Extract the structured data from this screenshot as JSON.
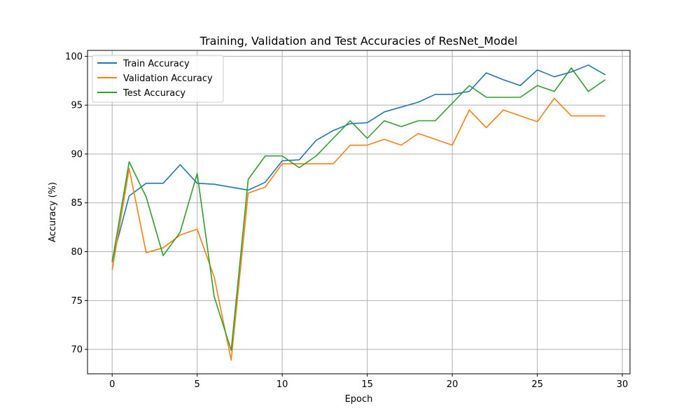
{
  "chart_data": {
    "type": "line",
    "title": "Training, Validation and Test Accuracies of ResNet_Model",
    "xlabel": "Epoch",
    "ylabel": "Accuracy (%)",
    "xlim": [
      -1.45,
      30.45
    ],
    "ylim": [
      67.5,
      100.6
    ],
    "xticks": [
      0,
      5,
      10,
      15,
      20,
      25,
      30
    ],
    "yticks": [
      70,
      75,
      80,
      85,
      90,
      95,
      100
    ],
    "grid": true,
    "legend_position": "top-left",
    "x": [
      0,
      1,
      2,
      3,
      4,
      5,
      6,
      7,
      8,
      9,
      10,
      11,
      12,
      13,
      14,
      15,
      16,
      17,
      18,
      19,
      20,
      21,
      22,
      23,
      24,
      25,
      26,
      27,
      28,
      29
    ],
    "series": [
      {
        "name": "Train Accuracy",
        "color": "#1f77b4",
        "values": [
          79.1,
          85.7,
          87.0,
          87.0,
          88.9,
          87.0,
          86.9,
          86.6,
          86.3,
          87.1,
          89.3,
          89.4,
          91.4,
          92.4,
          93.1,
          93.2,
          94.3,
          94.8,
          95.3,
          96.1,
          96.1,
          96.4,
          98.3,
          97.6,
          97.0,
          98.6,
          97.9,
          98.4,
          99.1,
          98.1
        ]
      },
      {
        "name": "Validation Accuracy",
        "color": "#ff7f0e",
        "values": [
          78.1,
          88.5,
          79.9,
          80.4,
          81.7,
          82.3,
          77.4,
          68.9,
          86.0,
          86.6,
          89.0,
          89.0,
          89.0,
          89.0,
          90.9,
          90.9,
          91.5,
          90.9,
          92.1,
          91.5,
          90.9,
          94.5,
          92.7,
          94.5,
          93.9,
          93.3,
          95.7,
          93.9,
          93.9,
          93.9
        ]
      },
      {
        "name": "Test Accuracy",
        "color": "#2ca02c",
        "values": [
          78.9,
          89.2,
          85.6,
          79.6,
          82.0,
          88.0,
          75.4,
          69.9,
          87.4,
          89.8,
          89.8,
          88.6,
          89.8,
          91.6,
          93.4,
          91.6,
          93.4,
          92.8,
          93.4,
          93.4,
          95.2,
          97.0,
          95.8,
          95.8,
          95.8,
          97.0,
          96.4,
          98.8,
          96.4,
          97.6
        ]
      }
    ]
  }
}
